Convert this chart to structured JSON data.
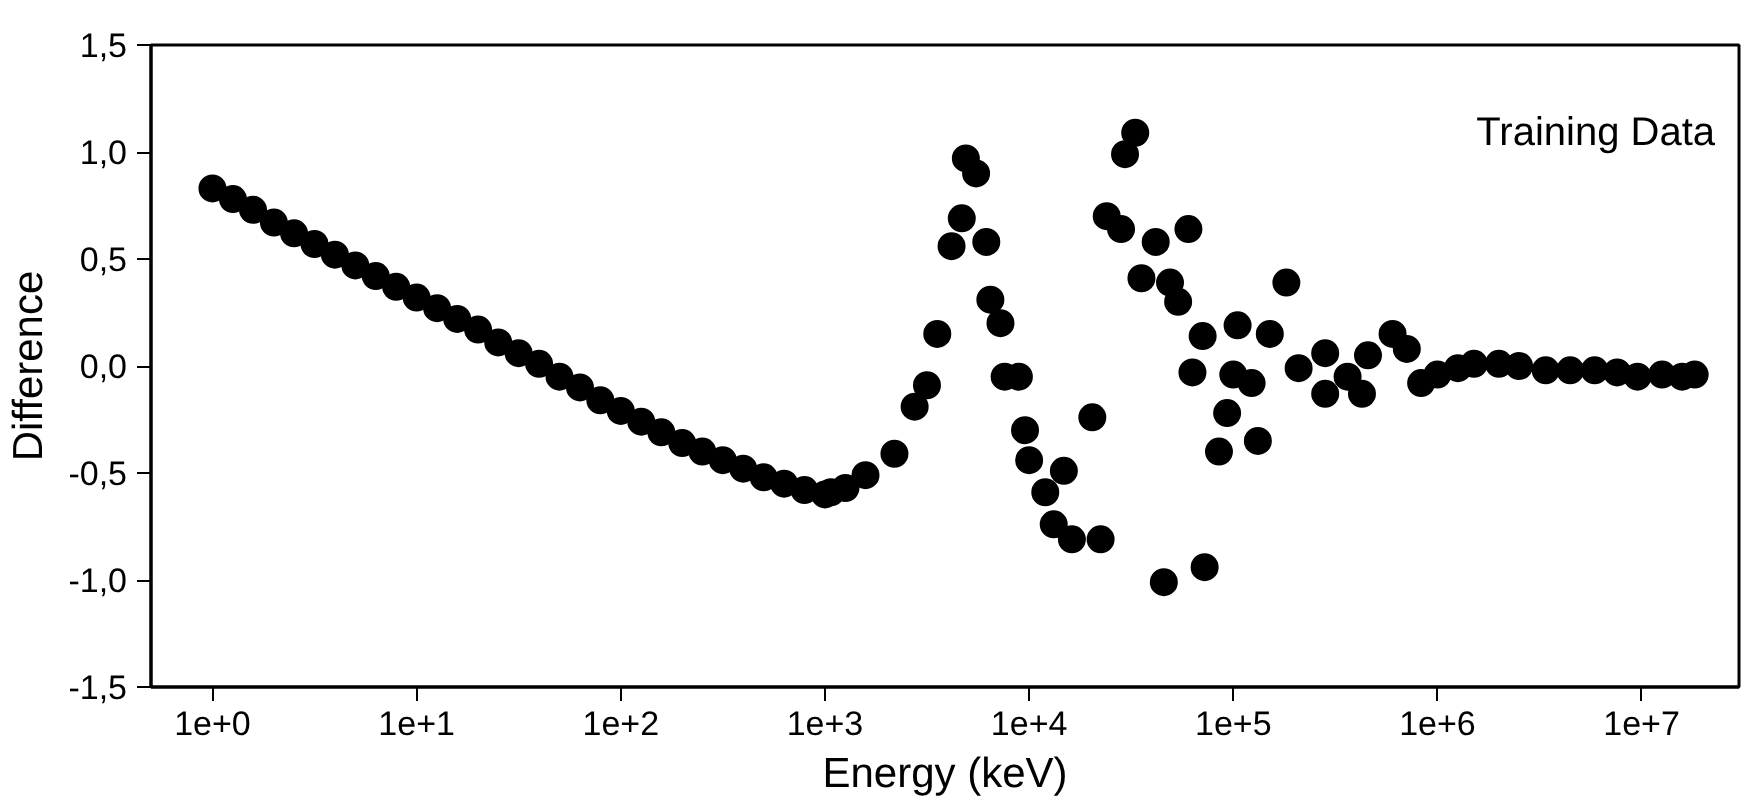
{
  "chart_data": {
    "type": "scatter",
    "xlabel": "Energy (keV)",
    "ylabel": "Difference",
    "annotations": [
      "Training Data"
    ],
    "log": "x",
    "grid": false,
    "marker": "circle",
    "xlim": [
      0.5,
      30000000
    ],
    "ylim": [
      -1.5,
      1.5
    ],
    "xticks": [
      {
        "value": 1,
        "label": "1e+0"
      },
      {
        "value": 10,
        "label": "1e+1"
      },
      {
        "value": 100,
        "label": "1e+2"
      },
      {
        "value": 1000,
        "label": "1e+3"
      },
      {
        "value": 10000,
        "label": "1e+4"
      },
      {
        "value": 100000,
        "label": "1e+5"
      },
      {
        "value": 1000000,
        "label": "1e+6"
      },
      {
        "value": 10000000,
        "label": "1e+7"
      }
    ],
    "yticks": [
      {
        "value": -1.5,
        "label": "-1,5"
      },
      {
        "value": -1.0,
        "label": "-1,0"
      },
      {
        "value": -0.5,
        "label": "-0,5"
      },
      {
        "value": 0,
        "label": "0,0"
      },
      {
        "value": 0.5,
        "label": "0,5"
      },
      {
        "value": 1.0,
        "label": "1,0"
      },
      {
        "value": 1.5,
        "label": "1,5"
      }
    ],
    "series": [
      {
        "color": "#000000",
        "x": [
          1,
          1.26,
          1.58,
          2,
          2.51,
          3.16,
          3.98,
          5.01,
          6.31,
          7.94,
          10,
          12.6,
          15.8,
          20,
          25.1,
          31.6,
          39.8,
          50.1,
          63.1,
          79.4,
          100,
          126,
          158,
          200,
          251,
          316,
          398,
          501,
          631,
          794,
          1000,
          1070,
          1260,
          1580,
          2190,
          2750,
          3160,
          3550,
          4170,
          4680,
          4900,
          5500,
          6170,
          6460,
          7240,
          7590,
          8910,
          9550,
          10000,
          12000,
          13200,
          14800,
          16200,
          20400,
          22400,
          24000,
          28200,
          29500,
          33100,
          35500,
          41700,
          45700,
          49000,
          53700,
          60300,
          63100,
          70800,
          72400,
          85100,
          93300,
          100000,
          105000,
          123000,
          132000,
          151000,
          182000,
          209000,
          282000,
          282000,
          363000,
          427000,
          457000,
          603000,
          708000,
          832000,
          1000000,
          1260000,
          1510000,
          2000000,
          2510000,
          3390000,
          4470000,
          5890000,
          7590000,
          9550000,
          12600000,
          15800000,
          18200000
        ],
        "values": [
          0.83,
          0.78,
          0.73,
          0.67,
          0.62,
          0.57,
          0.52,
          0.47,
          0.42,
          0.37,
          0.32,
          0.27,
          0.22,
          0.17,
          0.11,
          0.06,
          0.01,
          -0.05,
          -0.1,
          -0.16,
          -0.21,
          -0.26,
          -0.31,
          -0.36,
          -0.4,
          -0.44,
          -0.48,
          -0.52,
          -0.55,
          -0.58,
          -0.6,
          -0.59,
          -0.57,
          -0.51,
          -0.41,
          -0.19,
          -0.09,
          0.15,
          0.56,
          0.69,
          0.97,
          0.9,
          0.58,
          0.31,
          0.2,
          -0.05,
          -0.05,
          -0.3,
          -0.44,
          -0.59,
          -0.74,
          -0.49,
          -0.81,
          -0.24,
          -0.81,
          0.7,
          0.64,
          0.99,
          1.09,
          0.41,
          0.58,
          -1.01,
          0.39,
          0.3,
          0.64,
          -0.03,
          0.14,
          -0.94,
          -0.4,
          -0.22,
          -0.04,
          0.19,
          -0.08,
          -0.35,
          0.15,
          0.39,
          -0.01,
          0.06,
          -0.13,
          -0.05,
          -0.13,
          0.05,
          0.15,
          0.08,
          -0.08,
          -0.04,
          -0.01,
          0.01,
          0.01,
          0,
          -0.02,
          -0.02,
          -0.02,
          -0.03,
          -0.05,
          -0.04,
          -0.05,
          -0.04
        ]
      }
    ]
  }
}
